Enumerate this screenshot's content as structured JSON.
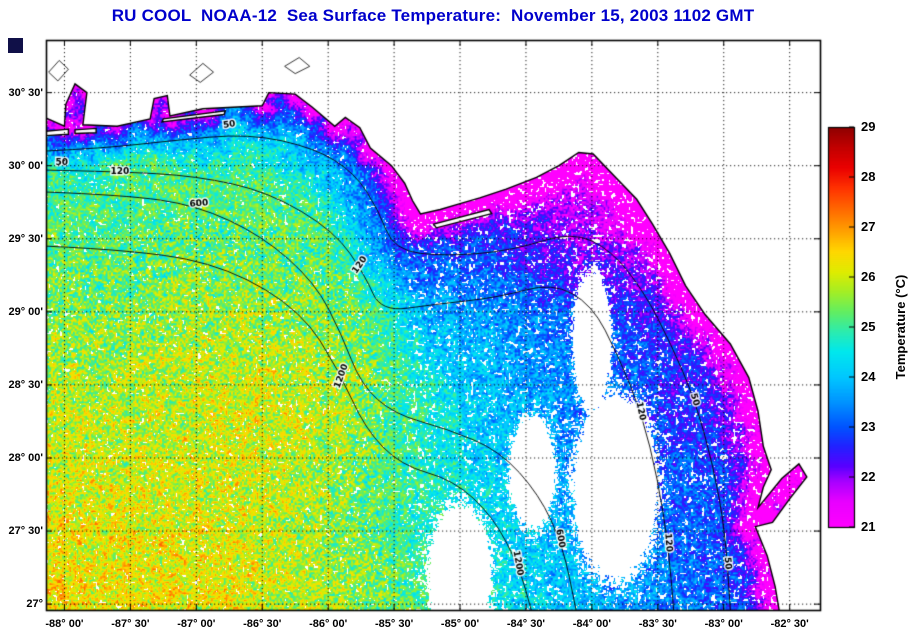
{
  "header": {
    "title": "RU COOL  NOAA-12  Sea Surface Temperature:  November 15, 2003 1102 GMT",
    "color": "#0000cc"
  },
  "corner_mark": {
    "color": "#101048"
  },
  "chart_data": {
    "type": "heatmap",
    "description": "Satellite sea surface temperature map of the northeastern Gulf of Mexico with bathymetry contours, dotted lat/lon grid and temperature colorbar",
    "x_axis": {
      "unit": "longitude",
      "range": [
        -88.14,
        -82.27
      ],
      "tick_values": [
        -88,
        -87.5,
        -87,
        -86.5,
        -86,
        -85.5,
        -85,
        -84.5,
        -84,
        -83.5,
        -83,
        -82.5
      ],
      "tick_labels": [
        "-88° 00'",
        "-87° 30'",
        "-87° 00'",
        "-86° 30'",
        "-86° 00'",
        "-85° 30'",
        "-85° 00'",
        "-84° 30'",
        "-84° 00'",
        "-83° 30'",
        "-83° 00'",
        "-82° 30'"
      ]
    },
    "y_axis": {
      "unit": "latitude",
      "range": [
        26.96,
        30.86
      ],
      "tick_values": [
        30.5,
        30,
        29.5,
        29,
        28.5,
        28,
        27.5,
        27
      ],
      "tick_labels": [
        "30° 30'",
        "30° 00'",
        "29° 30'",
        "29° 00'",
        "28° 30'",
        "28° 00'",
        "27° 30'",
        "27°"
      ]
    },
    "grid": {
      "style": "dotted",
      "color": "#000000"
    },
    "colorbar": {
      "label": "Temperature (°C)",
      "min": 21,
      "max": 29,
      "tick_values": [
        21,
        22,
        23,
        24,
        25,
        26,
        27,
        28,
        29
      ],
      "tick_labels": [
        "21",
        "22",
        "23",
        "24",
        "25",
        "26",
        "27",
        "28",
        "29"
      ],
      "no_data_color": "#ffffff",
      "stops": [
        {
          "v": 21.0,
          "c": "#ff00ff"
        },
        {
          "v": 21.5,
          "c": "#e800ff"
        },
        {
          "v": 21.9,
          "c": "#a800ff"
        },
        {
          "v": 22.2,
          "c": "#5a00ff"
        },
        {
          "v": 22.6,
          "c": "#2222ff"
        },
        {
          "v": 23.0,
          "c": "#0055ff"
        },
        {
          "v": 23.5,
          "c": "#0095ff"
        },
        {
          "v": 24.0,
          "c": "#00c8ff"
        },
        {
          "v": 24.5,
          "c": "#00e8ee"
        },
        {
          "v": 24.9,
          "c": "#2cecaf"
        },
        {
          "v": 25.3,
          "c": "#62ee62"
        },
        {
          "v": 25.7,
          "c": "#a4ee26"
        },
        {
          "v": 26.1,
          "c": "#e0ec00"
        },
        {
          "v": 26.5,
          "c": "#ffd800"
        },
        {
          "v": 26.9,
          "c": "#ffa400"
        },
        {
          "v": 27.3,
          "c": "#ff7100"
        },
        {
          "v": 27.8,
          "c": "#ff3000"
        },
        {
          "v": 28.2,
          "c": "#ea0000"
        },
        {
          "v": 28.6,
          "c": "#c20000"
        },
        {
          "v": 29.0,
          "c": "#8f0000"
        }
      ]
    },
    "sst_control_points": [
      [
        -87.9,
        27.1,
        26.4,
        1.1
      ],
      [
        -86.8,
        27.0,
        26.3,
        1.0
      ],
      [
        -85.9,
        27.1,
        25.5,
        0.8
      ],
      [
        -87.6,
        28.2,
        25.7,
        0.8
      ],
      [
        -86.6,
        28.65,
        26.4,
        0.55
      ],
      [
        -87.3,
        29.2,
        25.3,
        0.7
      ],
      [
        -86.5,
        29.5,
        25.1,
        0.6
      ],
      [
        -87.8,
        29.8,
        25.0,
        0.5
      ],
      [
        -85.9,
        28.4,
        25.9,
        0.6
      ],
      [
        -86.1,
        29.0,
        25.3,
        0.5
      ],
      [
        -87.9,
        30.22,
        23.3,
        0.25
      ],
      [
        -87.0,
        30.28,
        23.5,
        0.25
      ],
      [
        -86.2,
        30.22,
        23.6,
        0.25
      ],
      [
        -85.8,
        30.0,
        23.4,
        0.25
      ],
      [
        -85.55,
        29.75,
        22.9,
        0.25
      ],
      [
        -85.35,
        29.5,
        22.2,
        0.3
      ],
      [
        -84.9,
        29.45,
        22.8,
        0.4
      ],
      [
        -84.35,
        29.5,
        21.8,
        0.45
      ],
      [
        -83.9,
        29.6,
        21.4,
        0.4
      ],
      [
        -83.6,
        29.3,
        22.0,
        0.4
      ],
      [
        -85.1,
        29.0,
        23.7,
        0.45
      ],
      [
        -84.6,
        28.8,
        23.6,
        0.5
      ],
      [
        -84.1,
        28.9,
        23.2,
        0.5
      ],
      [
        -85.0,
        28.2,
        24.3,
        0.6
      ],
      [
        -84.4,
        27.9,
        23.7,
        0.6
      ],
      [
        -83.8,
        28.3,
        23.1,
        0.55
      ],
      [
        -83.4,
        28.6,
        22.5,
        0.45
      ],
      [
        -83.3,
        27.8,
        23.0,
        0.5
      ],
      [
        -83.7,
        27.2,
        23.6,
        0.5
      ],
      [
        -82.95,
        27.3,
        22.7,
        0.4
      ],
      [
        -83.05,
        28.2,
        22.2,
        0.35
      ],
      [
        -82.95,
        28.7,
        21.9,
        0.35
      ],
      [
        -84.8,
        27.3,
        24.2,
        0.6
      ],
      [
        -85.4,
        27.6,
        25.0,
        0.6
      ]
    ],
    "coast_cooling": {
      "reach_deg": 0.3,
      "max_drop_c": 3.4
    },
    "cloud_masks": [
      [
        -83.82,
        27.8,
        0.34,
        0.66
      ],
      [
        -84.0,
        28.8,
        0.15,
        0.5
      ],
      [
        -85.0,
        27.2,
        0.25,
        0.5
      ],
      [
        -84.45,
        27.9,
        0.18,
        0.4
      ]
    ],
    "land": {
      "color": "#ffffff",
      "outline": "#000000",
      "coast": [
        [
          -88.15,
          30.33
        ],
        [
          -88.0,
          30.27
        ],
        [
          -87.99,
          30.42
        ],
        [
          -87.92,
          30.56
        ],
        [
          -87.83,
          30.5
        ],
        [
          -87.86,
          30.28
        ],
        [
          -87.6,
          30.27
        ],
        [
          -87.35,
          30.32
        ],
        [
          -87.32,
          30.46
        ],
        [
          -87.22,
          30.48
        ],
        [
          -87.2,
          30.34
        ],
        [
          -86.95,
          30.39
        ],
        [
          -86.5,
          30.41
        ],
        [
          -86.45,
          30.5
        ],
        [
          -86.25,
          30.49
        ],
        [
          -86.12,
          30.4
        ],
        [
          -85.95,
          30.27
        ],
        [
          -85.87,
          30.33
        ],
        [
          -85.76,
          30.26
        ],
        [
          -85.68,
          30.12
        ],
        [
          -85.52,
          30.0
        ],
        [
          -85.42,
          29.88
        ],
        [
          -85.36,
          29.76
        ],
        [
          -85.3,
          29.67
        ],
        [
          -85.15,
          29.7
        ],
        [
          -85.0,
          29.74
        ],
        [
          -84.85,
          29.78
        ],
        [
          -84.65,
          29.84
        ],
        [
          -84.42,
          29.92
        ],
        [
          -84.25,
          30.0
        ],
        [
          -84.1,
          30.09
        ],
        [
          -83.99,
          30.08
        ],
        [
          -83.83,
          29.93
        ],
        [
          -83.66,
          29.77
        ],
        [
          -83.54,
          29.6
        ],
        [
          -83.41,
          29.4
        ],
        [
          -83.29,
          29.18
        ],
        [
          -83.14,
          28.98
        ],
        [
          -82.95,
          28.78
        ],
        [
          -82.81,
          28.55
        ],
        [
          -82.74,
          28.32
        ],
        [
          -82.7,
          28.08
        ],
        [
          -82.64,
          27.92
        ],
        [
          -82.7,
          27.8
        ],
        [
          -82.74,
          27.66
        ],
        [
          -82.56,
          27.86
        ],
        [
          -82.43,
          27.96
        ],
        [
          -82.37,
          27.87
        ],
        [
          -82.5,
          27.72
        ],
        [
          -82.63,
          27.56
        ],
        [
          -82.76,
          27.53
        ],
        [
          -82.67,
          27.33
        ],
        [
          -82.61,
          27.12
        ],
        [
          -82.58,
          26.96
        ]
      ],
      "close_path": [
        [
          -82.0,
          26.5
        ],
        [
          -82.0,
          31.2
        ],
        [
          -88.5,
          31.2
        ],
        [
          -88.5,
          30.33
        ]
      ],
      "islands": [
        [
          [
            -88.15,
            30.235
          ],
          [
            -87.97,
            30.25
          ],
          [
            -87.97,
            30.215
          ],
          [
            -88.15,
            30.205
          ]
        ],
        [
          [
            -87.92,
            30.245
          ],
          [
            -87.76,
            30.255
          ],
          [
            -87.76,
            30.225
          ],
          [
            -87.92,
            30.22
          ]
        ],
        [
          [
            -87.25,
            30.32
          ],
          [
            -86.78,
            30.375
          ],
          [
            -86.79,
            30.35
          ],
          [
            -87.26,
            30.3
          ]
        ],
        [
          [
            -85.2,
            29.6
          ],
          [
            -84.78,
            29.7
          ],
          [
            -84.76,
            29.672
          ],
          [
            -85.18,
            29.575
          ]
        ]
      ],
      "lakes": [
        [
          [
            -88.12,
            30.64
          ],
          [
            -88.04,
            30.72
          ],
          [
            -87.97,
            30.66
          ],
          [
            -88.05,
            30.58
          ]
        ],
        [
          [
            -87.05,
            30.62
          ],
          [
            -86.95,
            30.7
          ],
          [
            -86.87,
            30.64
          ],
          [
            -86.97,
            30.57
          ]
        ],
        [
          [
            -86.33,
            30.68
          ],
          [
            -86.22,
            30.74
          ],
          [
            -86.14,
            30.68
          ],
          [
            -86.25,
            30.63
          ]
        ]
      ]
    },
    "isobaths": [
      {
        "depth": "50",
        "path": [
          [
            -88.15,
            30.1
          ],
          [
            -87.7,
            30.12
          ],
          [
            -87.2,
            30.17
          ],
          [
            -86.6,
            30.22
          ],
          [
            -86.1,
            30.12
          ],
          [
            -85.8,
            29.95
          ],
          [
            -85.62,
            29.7
          ],
          [
            -85.5,
            29.42
          ],
          [
            -85.1,
            29.38
          ],
          [
            -84.6,
            29.42
          ],
          [
            -84.15,
            29.55
          ],
          [
            -83.85,
            29.42
          ],
          [
            -83.6,
            29.13
          ],
          [
            -83.4,
            28.78
          ],
          [
            -83.22,
            28.4
          ],
          [
            -83.08,
            27.95
          ],
          [
            -82.99,
            27.5
          ],
          [
            -82.95,
            26.96
          ]
        ],
        "labels": [
          {
            "lon": -88.02,
            "lat": 30.02,
            "angle": 0
          },
          {
            "lon": -86.75,
            "lat": 30.28,
            "angle": -8
          },
          {
            "lon": -83.22,
            "lat": 28.4,
            "angle": 75
          },
          {
            "lon": -82.97,
            "lat": 27.28,
            "angle": 85
          }
        ]
      },
      {
        "depth": "120",
        "path": [
          [
            -88.15,
            29.97
          ],
          [
            -87.6,
            29.96
          ],
          [
            -87.0,
            29.93
          ],
          [
            -86.45,
            29.82
          ],
          [
            -85.95,
            29.55
          ],
          [
            -85.72,
            29.25
          ],
          [
            -85.6,
            29.0
          ],
          [
            -85.2,
            29.05
          ],
          [
            -84.7,
            29.1
          ],
          [
            -84.3,
            29.2
          ],
          [
            -84.0,
            29.05
          ],
          [
            -83.8,
            28.7
          ],
          [
            -83.62,
            28.3
          ],
          [
            -83.5,
            27.85
          ],
          [
            -83.42,
            27.4
          ],
          [
            -83.38,
            26.96
          ]
        ],
        "labels": [
          {
            "lon": -87.58,
            "lat": 29.96,
            "angle": 0
          },
          {
            "lon": -85.76,
            "lat": 29.32,
            "angle": -55
          },
          {
            "lon": -83.63,
            "lat": 28.32,
            "angle": 78
          },
          {
            "lon": -83.42,
            "lat": 27.42,
            "angle": 85
          }
        ]
      },
      {
        "depth": "600",
        "path": [
          [
            -88.15,
            29.82
          ],
          [
            -87.55,
            29.8
          ],
          [
            -87.0,
            29.73
          ],
          [
            -86.5,
            29.52
          ],
          [
            -86.1,
            29.2
          ],
          [
            -85.9,
            28.85
          ],
          [
            -85.75,
            28.5
          ],
          [
            -85.5,
            28.3
          ],
          [
            -85.1,
            28.2
          ],
          [
            -84.7,
            28.05
          ],
          [
            -84.4,
            27.75
          ],
          [
            -84.22,
            27.4
          ],
          [
            -84.12,
            26.96
          ]
        ],
        "labels": [
          {
            "lon": -86.98,
            "lat": 29.74,
            "angle": -5
          },
          {
            "lon": -84.24,
            "lat": 27.45,
            "angle": 80
          }
        ]
      },
      {
        "depth": "1200",
        "path": [
          [
            -88.15,
            29.45
          ],
          [
            -87.4,
            29.42
          ],
          [
            -86.75,
            29.3
          ],
          [
            -86.2,
            29.0
          ],
          [
            -85.92,
            28.6
          ],
          [
            -85.72,
            28.2
          ],
          [
            -85.45,
            27.95
          ],
          [
            -85.05,
            27.85
          ],
          [
            -84.75,
            27.6
          ],
          [
            -84.55,
            27.25
          ],
          [
            -84.46,
            26.96
          ]
        ],
        "labels": [
          {
            "lon": -85.9,
            "lat": 28.56,
            "angle": -70
          },
          {
            "lon": -84.56,
            "lat": 27.28,
            "angle": 80
          }
        ]
      }
    ]
  }
}
